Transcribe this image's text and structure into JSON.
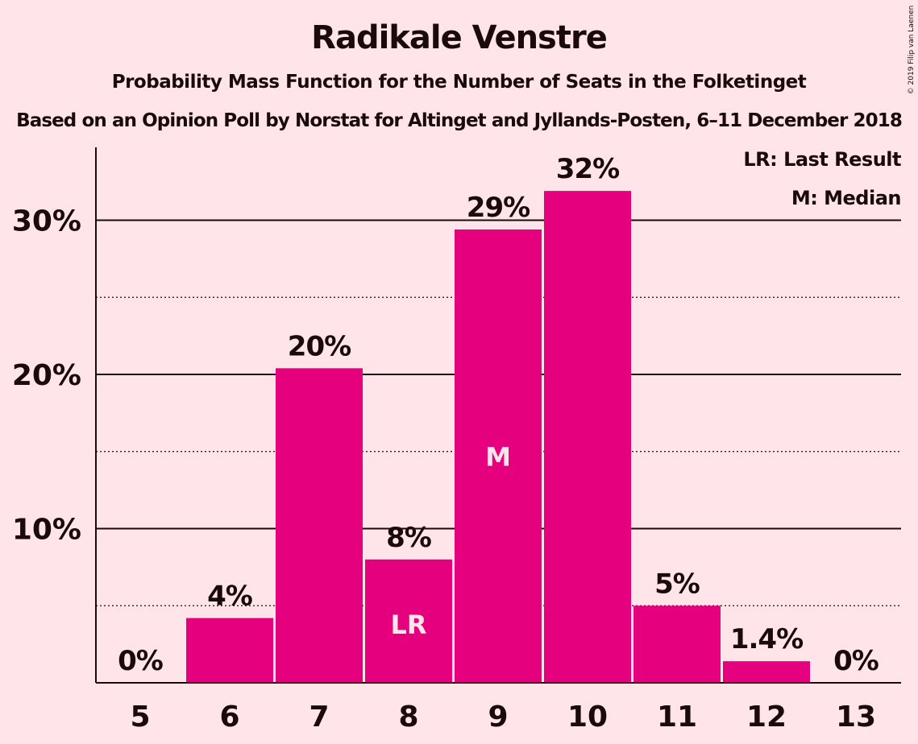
{
  "chart_data": {
    "type": "bar",
    "title": "Radikale Venstre",
    "subtitle": "Probability Mass Function for the Number of Seats in the Folketinget",
    "subtitle2": "Based on an Opinion Poll by Norstat for Altinget and Jyllands-Posten, 6–11 December 2018",
    "copyright": "© 2019 Filip van Laenen",
    "categories": [
      "5",
      "6",
      "7",
      "8",
      "9",
      "10",
      "11",
      "12",
      "13"
    ],
    "values": [
      0,
      4.2,
      20.4,
      8.0,
      29.4,
      31.9,
      5.0,
      1.4,
      0
    ],
    "value_labels": [
      "0%",
      "4%",
      "20%",
      "8%",
      "29%",
      "32%",
      "5%",
      "1.4%",
      "0%"
    ],
    "bar_markers": [
      "",
      "",
      "",
      "LR",
      "M",
      "",
      "",
      "",
      ""
    ],
    "ylim": [
      0,
      34.5
    ],
    "yticks": [
      10,
      20,
      30
    ],
    "ytick_labels": [
      "10%",
      "20%",
      "30%"
    ],
    "minor_gridlines": [
      5,
      15,
      25
    ],
    "grid": true,
    "legend_placement": "top-right",
    "legend": [
      "LR: Last Result",
      "M: Median"
    ],
    "colors": {
      "bar": "#e5007d",
      "background": "#ffe5e9",
      "text": "#1a0a0a",
      "marker_text": "#ffe5e9"
    }
  }
}
